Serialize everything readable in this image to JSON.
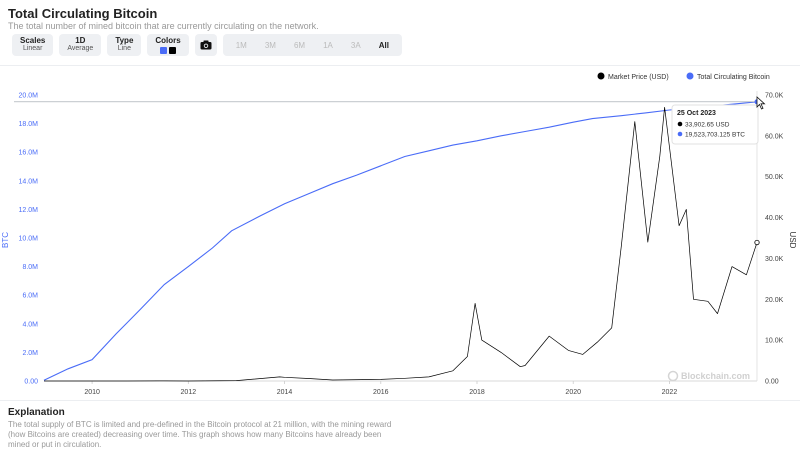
{
  "header": {
    "title": "Total Circulating Bitcoin",
    "subtitle": "The total number of mined bitcoin that are currently circulating on the network."
  },
  "toolbar": {
    "scales": {
      "title": "Scales",
      "value": "Linear"
    },
    "average": {
      "title": "1D",
      "value": "Average"
    },
    "type": {
      "title": "Type",
      "value": "Line"
    },
    "colors": {
      "title": "Colors",
      "swatch1": "#4a6cf7",
      "swatch2": "#000000"
    },
    "camera_icon": "camera-icon",
    "ranges": [
      "1M",
      "3M",
      "6M",
      "1A",
      "3A",
      "All"
    ],
    "active_range": "All"
  },
  "chart_data": {
    "type": "line",
    "legend": [
      "Market Price (USD)",
      "Total Circulating Bitcoin"
    ],
    "legend_position": "top-right",
    "x_ticks": [
      "2010",
      "2012",
      "2014",
      "2016",
      "2018",
      "2020",
      "2022"
    ],
    "y_left": {
      "label": "BTC",
      "range": [
        0,
        20000000
      ],
      "ticks": [
        "0.00",
        "2.0M",
        "4.0M",
        "6.0M",
        "8.0M",
        "10.0M",
        "12.0M",
        "14.0M",
        "16.0M",
        "18.0M",
        "20.0M"
      ]
    },
    "y_right": {
      "label": "USD",
      "range": [
        0,
        70000
      ],
      "ticks": [
        "0.00",
        "10.0K",
        "20.0K",
        "30.0K",
        "40.0K",
        "50.0K",
        "60.0K",
        "70.0K"
      ]
    },
    "series": [
      {
        "name": "Total Circulating Bitcoin",
        "color": "#4a6cf7",
        "axis": "left",
        "x": [
          2009.0,
          2009.5,
          2010.0,
          2010.5,
          2011.0,
          2011.5,
          2012.0,
          2012.5,
          2012.9,
          2013.5,
          2014.0,
          2014.5,
          2015.0,
          2015.5,
          2016.0,
          2016.5,
          2017.0,
          2017.5,
          2018.0,
          2018.5,
          2019.0,
          2019.5,
          2020.0,
          2020.4,
          2021.0,
          2021.5,
          2022.0,
          2022.5,
          2023.0,
          2023.5,
          2023.82
        ],
        "y": [
          50000,
          850000,
          1500000,
          3300000,
          5000000,
          6750000,
          8000000,
          9300000,
          10500000,
          11550000,
          12400000,
          13100000,
          13800000,
          14400000,
          15050000,
          15700000,
          16100000,
          16500000,
          16800000,
          17150000,
          17450000,
          17750000,
          18100000,
          18350000,
          18550000,
          18750000,
          18950000,
          19100000,
          19260000,
          19420000,
          19523703
        ]
      },
      {
        "name": "Market Price (USD)",
        "color": "#000000",
        "axis": "right",
        "x": [
          2009.0,
          2010.5,
          2011.4,
          2011.5,
          2012.0,
          2013.0,
          2013.9,
          2014.0,
          2014.5,
          2015.0,
          2016.0,
          2016.5,
          2017.0,
          2017.5,
          2017.8,
          2017.96,
          2018.1,
          2018.5,
          2018.9,
          2019.0,
          2019.5,
          2019.9,
          2020.2,
          2020.5,
          2020.8,
          2021.0,
          2021.28,
          2021.55,
          2021.8,
          2021.9,
          2022.2,
          2022.35,
          2022.5,
          2022.8,
          2023.0,
          2023.3,
          2023.6,
          2023.82
        ],
        "y": [
          0,
          0,
          30,
          15,
          5,
          100,
          1000,
          900,
          600,
          250,
          400,
          650,
          1000,
          2500,
          6000,
          19000,
          10000,
          7000,
          3500,
          3800,
          11000,
          7500,
          6500,
          9500,
          13000,
          33000,
          63500,
          34000,
          55000,
          67000,
          38000,
          42000,
          20000,
          19500,
          16500,
          28000,
          26000,
          33902.65
        ]
      }
    ],
    "tooltip": {
      "date": "25 Oct 2023",
      "price": "33,902.65 USD",
      "supply": "19,523,703.125 BTC"
    },
    "watermark": "Blockchain.com"
  },
  "explanation": {
    "title": "Explanation",
    "text": "The total supply of BTC is limited and pre-defined in the Bitcoin protocol at 21 million, with the mining reward (how Bitcoins are created) decreasing over time. This graph shows how many Bitcoins have already been mined or put in circulation."
  }
}
